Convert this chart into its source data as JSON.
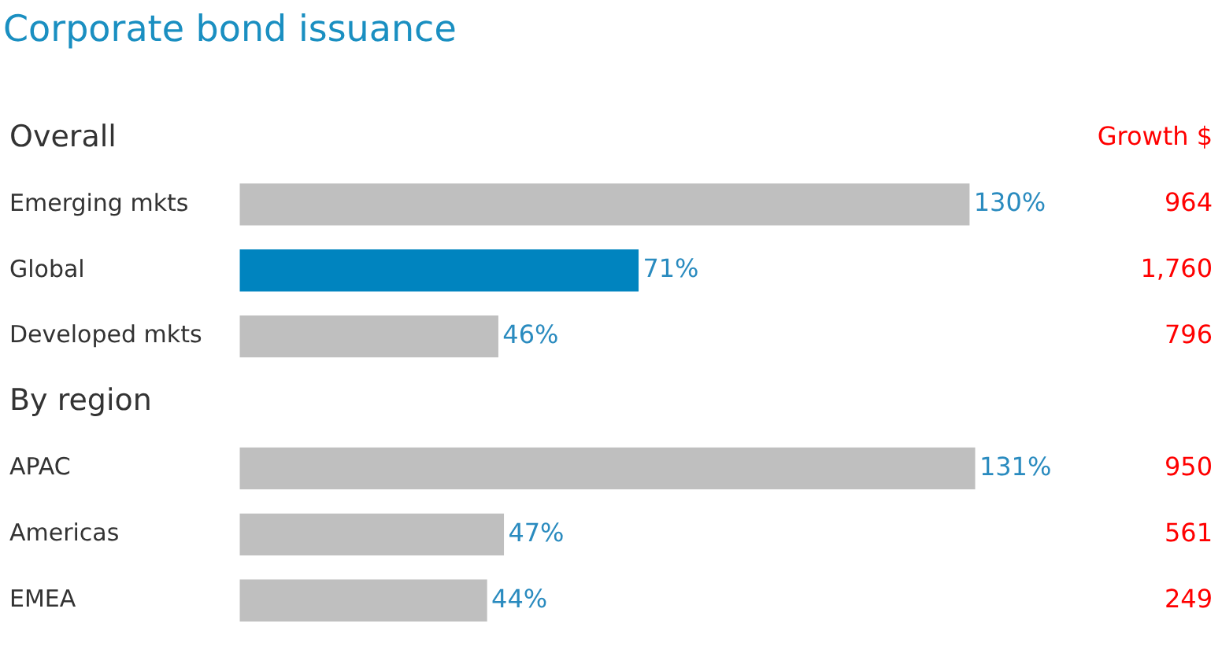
{
  "chart_data": {
    "type": "bar",
    "orientation": "horizontal",
    "title": "Corporate bond issuance",
    "categories": [
      "Overall",
      "Emerging mkts",
      "Global",
      "Developed mkts",
      "By region",
      "APAC",
      "Americas",
      "EMEA"
    ],
    "values": [
      null,
      130,
      71,
      46,
      null,
      131,
      47,
      44
    ],
    "colors": [
      "#bfbfbf",
      "#bfbfbf",
      "#0084bf",
      "#bfbfbf",
      "#bfbfbf",
      "#bfbfbf",
      "#bfbfbf",
      "#bfbfbf"
    ],
    "value_labels": [
      null,
      "130%",
      "71%",
      "46%",
      null,
      "131%",
      "47%",
      "44%"
    ],
    "annotations": [
      "Growth $",
      "964",
      "1,760",
      "796",
      "950",
      "561",
      "249"
    ]
  }
}
